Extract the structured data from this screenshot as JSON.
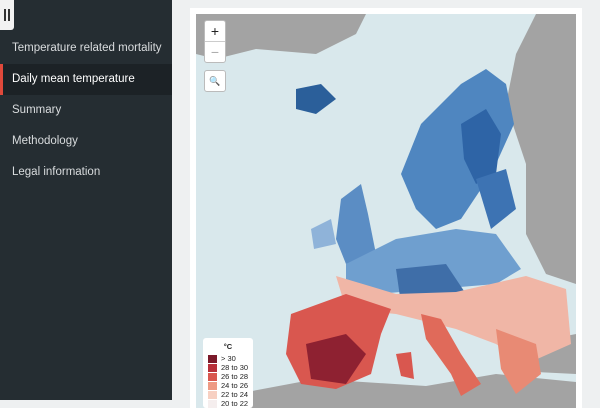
{
  "nav": [
    "Temperature related mortality",
    "Daily mean temperature",
    "Summary",
    "Methodology",
    "Legal information"
  ],
  "active_nav": 1,
  "zoom_in": "+",
  "zoom_out": "−",
  "search": "🔍",
  "legend": {
    "title": "°C",
    "items": [
      {
        "label": "> 30",
        "color": "#7b1a2a"
      },
      {
        "label": "28 to 30",
        "color": "#b8303a"
      },
      {
        "label": "26 to 28",
        "color": "#d9574f"
      },
      {
        "label": "24 to 26",
        "color": "#ee9a84"
      },
      {
        "label": "22 to 24",
        "color": "#f7d0c2"
      },
      {
        "label": "20 to 22",
        "color": "#f5eeee"
      }
    ]
  }
}
